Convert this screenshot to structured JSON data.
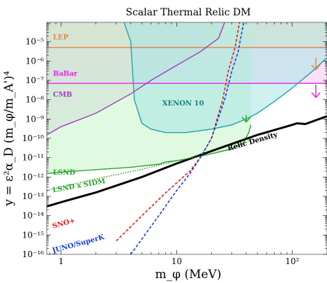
{
  "chart_data": {
    "type": "line",
    "title": "Scalar Thermal Relic DM",
    "xlabel": "m_φ (MeV)",
    "ylabel": "y = ε²α_D (m_φ/m_A')⁴",
    "x_scale": "log",
    "y_scale": "log",
    "xlim": [
      0.75,
      200
    ],
    "ylim": [
      1e-16,
      0.0001
    ],
    "x_ticks": [
      {
        "value": 1,
        "label": "1"
      },
      {
        "value": 10,
        "label": "10"
      },
      {
        "value": 100,
        "label": "10²"
      }
    ],
    "y_ticks": [
      {
        "value": 1e-05,
        "label": "10⁻⁵"
      },
      {
        "value": 1e-06,
        "label": "10⁻⁶"
      },
      {
        "value": 1e-07,
        "label": "10⁻⁷"
      },
      {
        "value": 1e-08,
        "label": "10⁻⁸"
      },
      {
        "value": 1e-09,
        "label": "10⁻⁹"
      },
      {
        "value": 1e-10,
        "label": "10⁻¹⁰"
      },
      {
        "value": 1e-11,
        "label": "10⁻¹¹"
      },
      {
        "value": 1e-12,
        "label": "10⁻¹²"
      },
      {
        "value": 1e-13,
        "label": "10⁻¹³"
      },
      {
        "value": 1e-14,
        "label": "10⁻¹⁴"
      },
      {
        "value": 1e-15,
        "label": "10⁻¹⁵"
      },
      {
        "value": 1e-16,
        "label": "10⁻¹⁶"
      }
    ],
    "regions": [
      {
        "name": "LEP",
        "color": "#e8864a",
        "fill": "#f3c9b3",
        "points": [
          [
            0.75,
            5e-06
          ],
          [
            200,
            5e-06
          ],
          [
            200,
            0.0001
          ],
          [
            0.75,
            0.0001
          ]
        ]
      },
      {
        "name": "BaBar",
        "color": "#ee22ee",
        "fill": "#f6c6f2",
        "points": [
          [
            0.75,
            7e-08
          ],
          [
            200,
            7e-08
          ],
          [
            200,
            5e-06
          ],
          [
            0.75,
            5e-06
          ]
        ]
      },
      {
        "name": "CMB",
        "color": "#a03bbd",
        "fill": "#d9c8e6",
        "points": [
          [
            0.75,
            1.5e-10
          ],
          [
            1,
            4e-10
          ],
          [
            2,
            2e-09
          ],
          [
            4,
            2e-08
          ],
          [
            6,
            1e-07
          ],
          [
            10,
            6e-07
          ],
          [
            16,
            3e-06
          ],
          [
            23,
            1.5e-05
          ],
          [
            26,
            0.0001
          ],
          [
            0.75,
            0.0001
          ]
        ]
      },
      {
        "name": "LSND",
        "color": "#2aa52a",
        "fill": "#c7f4c9",
        "points": [
          [
            0.75,
            1.5e-12
          ],
          [
            1,
            1.8e-12
          ],
          [
            2,
            2.4e-12
          ],
          [
            4,
            3.2e-12
          ],
          [
            7,
            4.6e-12
          ],
          [
            8,
            6e-12
          ],
          [
            10,
            7e-12
          ],
          [
            14,
            1e-11
          ],
          [
            20,
            1.6e-11
          ],
          [
            30,
            2.8e-11
          ],
          [
            38,
            6e-11
          ],
          [
            42,
            2e-10
          ],
          [
            44,
            5e-10
          ],
          [
            44,
            0.0001
          ],
          [
            0.75,
            0.0001
          ]
        ]
      },
      {
        "name": "XENON 10",
        "color": "#1aa6a6",
        "fill": "#a7e6e6",
        "points": [
          [
            3.5,
            0.0001
          ],
          [
            4,
            1e-05
          ],
          [
            4.3,
            1e-08
          ],
          [
            5,
            6e-10
          ],
          [
            6,
            3e-10
          ],
          [
            8,
            2e-10
          ],
          [
            12,
            2e-10
          ],
          [
            20,
            3e-10
          ],
          [
            30,
            5e-10
          ],
          [
            40,
            1e-09
          ],
          [
            50,
            2e-09
          ],
          [
            70,
            8e-09
          ],
          [
            100,
            4e-08
          ],
          [
            150,
            3e-07
          ],
          [
            200,
            1.5e-06
          ],
          [
            200,
            0.0001
          ]
        ]
      }
    ],
    "series": [
      {
        "name": "Relic Density",
        "color": "#000000",
        "style": "solid",
        "points": [
          [
            0.75,
            3e-14
          ],
          [
            1,
            5e-14
          ],
          [
            2,
            1.6e-13
          ],
          [
            5,
            1e-12
          ],
          [
            10,
            5e-12
          ],
          [
            20,
            2.2e-11
          ],
          [
            50,
            1.5e-10
          ],
          [
            100,
            5e-10
          ],
          [
            110,
            6e-10
          ],
          [
            130,
            5.5e-10
          ],
          [
            200,
            1.4e-09
          ]
        ]
      },
      {
        "name": "LSND x SIDM",
        "color": "#2aa52a",
        "style": "dotted",
        "points": [
          [
            0.75,
            2e-13
          ],
          [
            1,
            3e-13
          ],
          [
            2,
            8e-13
          ],
          [
            5,
            2.5e-12
          ],
          [
            10,
            7e-12
          ],
          [
            14,
            1e-11
          ],
          [
            20,
            1.6e-11
          ],
          [
            30,
            3e-11
          ],
          [
            40,
            6e-11
          ],
          [
            44,
            1e-10
          ]
        ]
      },
      {
        "name": "SNO+",
        "color": "#e01a1a",
        "style": "dashed",
        "points": [
          [
            3,
            5e-16
          ],
          [
            5,
            1e-14
          ],
          [
            8,
            1.5e-13
          ],
          [
            10,
            5e-13
          ],
          [
            13,
            2e-12
          ],
          [
            16,
            1e-11
          ],
          [
            20,
            1e-10
          ],
          [
            25,
            1e-08
          ],
          [
            28,
            3e-07
          ],
          [
            32,
            5e-06
          ],
          [
            35,
            0.0001
          ]
        ]
      },
      {
        "name": "JUNO/SuperK",
        "color": "#1a3ae0",
        "style": "dashed",
        "points": [
          [
            4,
            1e-16
          ],
          [
            7,
            1e-14
          ],
          [
            10,
            2e-13
          ],
          [
            13,
            1.5e-12
          ],
          [
            16,
            1e-11
          ],
          [
            20,
            1e-10
          ],
          [
            26,
            1e-08
          ],
          [
            30,
            3e-07
          ],
          [
            34,
            3e-06
          ],
          [
            38,
            0.0001
          ]
        ]
      }
    ],
    "annotations": [
      {
        "text": "LEP",
        "x": 0.85,
        "y": 1.3e-05,
        "color": "#e8864a"
      },
      {
        "text": "BaBar",
        "x": 0.85,
        "y": 1.7e-07,
        "color": "#ee22ee"
      },
      {
        "text": "CMB",
        "x": 0.85,
        "y": 1.4e-08,
        "color": "#a03bbd"
      },
      {
        "text": "XENON 10",
        "x": 7.5,
        "y": 5e-09,
        "color": "#1a8080"
      },
      {
        "text": "Relic Density",
        "x": 28,
        "y": 2.3e-11,
        "color": "#000000",
        "rotate": -16
      },
      {
        "text": "LSND",
        "x": 0.85,
        "y": 1.3e-12,
        "color": "#2aa52a"
      },
      {
        "text": "LSND x SIDM",
        "x": 0.85,
        "y": 1.6e-13,
        "color": "#2aa52a",
        "rotate": -10
      },
      {
        "text": "SNO+",
        "x": 0.85,
        "y": 2.2e-15,
        "color": "#e01a1a",
        "rotate": -15
      },
      {
        "text": "JUNO/SuperK",
        "x": 0.85,
        "y": 1.2e-16,
        "color": "#1a3ae0",
        "rotate": -15
      }
    ],
    "arrows": [
      {
        "name": "LEP-arrow",
        "x": 160,
        "y_from": 1.5e-06,
        "y_to": 3.5e-07,
        "color": "#e8864a"
      },
      {
        "name": "BaBar-arrow",
        "x": 160,
        "y_from": 6e-08,
        "y_to": 1.3e-08,
        "color": "#ee22ee"
      },
      {
        "name": "LSND-arrow",
        "x": 40,
        "y_from": 1.6e-09,
        "y_to": 7e-10,
        "color": "#2aa52a"
      }
    ],
    "colors": {
      "LEP": "#e8864a",
      "BaBar": "#ee22ee",
      "CMB": "#a03bbd",
      "LSND": "#2aa52a",
      "XENON 10": "#1aa6a6",
      "Relic Density": "#000000",
      "SNO+": "#e01a1a",
      "JUNO/SuperK": "#1a3ae0"
    }
  }
}
